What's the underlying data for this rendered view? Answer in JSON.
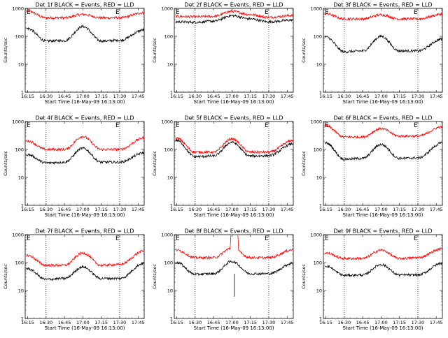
{
  "chart_data": {
    "type": "line",
    "xlabel": "Start Time (16-May-09 16:13:00)",
    "ylabel": "Counts/sec",
    "x_ticks": [
      "16:15",
      "16:30",
      "16:45",
      "17:00",
      "17:15",
      "17:30",
      "17:45"
    ],
    "x_range": [
      "16:13",
      "17:50"
    ],
    "y_scale": "log",
    "ylim": [
      1,
      1000
    ],
    "y_ticks": [
      "1",
      "10",
      "100",
      "1000"
    ],
    "vlines": [
      "16:30",
      "17:30"
    ],
    "series_colors": {
      "events": "#000000",
      "lld": "#ff0000"
    },
    "panels": [
      {
        "title": "Det 1f BLACK = Events, RED = LLD",
        "flag1": "E",
        "flag2": "E",
        "events": {
          "16:15": 190,
          "16:30": 68,
          "16:45": 70,
          "17:00": 225,
          "17:15": 68,
          "17:30": 72,
          "17:50": 170
        },
        "lld": {
          "16:15": 800,
          "16:30": 460,
          "16:45": 460,
          "17:00": 610,
          "17:15": 460,
          "17:30": 460,
          "17:50": 700
        }
      },
      {
        "title": "Det 2f BLACK = Events, RED = LLD",
        "flag1": "E",
        "flag2": "E",
        "events": {
          "16:15": 330,
          "16:30": 320,
          "16:45": 350,
          "17:00": 550,
          "17:15": 420,
          "17:30": 330,
          "17:50": 380
        },
        "lld": {
          "16:15": 520,
          "16:30": 500,
          "16:45": 520,
          "17:00": 780,
          "17:15": 600,
          "17:30": 480,
          "17:50": 560
        }
      },
      {
        "title": "Det 3f BLACK = Events, RED = LLD",
        "flag1": "E",
        "flag2": "E",
        "events": {
          "16:15": 95,
          "16:30": 28,
          "16:45": 30,
          "17:00": 100,
          "17:15": 30,
          "17:30": 30,
          "17:50": 80
        },
        "lld": {
          "16:15": 650,
          "16:30": 420,
          "16:45": 420,
          "17:00": 590,
          "17:15": 420,
          "17:30": 420,
          "17:50": 620
        }
      },
      {
        "title": "Det 4f BLACK = Events, RED = LLD",
        "flag1": "E",
        "flag2": "E",
        "events": {
          "16:15": 65,
          "16:30": 33,
          "16:45": 35,
          "17:00": 110,
          "17:15": 35,
          "17:30": 35,
          "17:50": 75
        },
        "lld": {
          "16:15": 200,
          "16:30": 100,
          "16:45": 100,
          "17:00": 290,
          "17:15": 100,
          "17:30": 100,
          "17:50": 260
        }
      },
      {
        "title": "Det 5f BLACK = Events, RED = LLD",
        "flag1": "E",
        "flag2": "E",
        "events": {
          "16:15": 210,
          "16:30": 55,
          "16:45": 58,
          "17:00": 180,
          "17:15": 58,
          "17:30": 60,
          "17:50": 160
        },
        "lld": {
          "16:15": 250,
          "16:30": 80,
          "16:45": 80,
          "17:00": 240,
          "17:15": 80,
          "17:30": 80,
          "17:50": 210
        }
      },
      {
        "title": "Det 6f BLACK = Events, RED = LLD",
        "flag1": "E",
        "flag2": "E",
        "events": {
          "16:15": 170,
          "16:30": 45,
          "16:45": 48,
          "17:00": 150,
          "17:15": 48,
          "17:30": 50,
          "17:50": 170
        },
        "lld": {
          "16:15": 700,
          "16:30": 280,
          "16:45": 280,
          "17:00": 560,
          "17:15": 300,
          "17:30": 300,
          "17:50": 650
        }
      },
      {
        "title": "Det 7f BLACK = Events, RED = LLD",
        "flag1": "E",
        "flag2": "E",
        "events": {
          "16:15": 60,
          "16:30": 25,
          "16:45": 27,
          "17:00": 70,
          "17:15": 27,
          "17:30": 27,
          "17:50": 95
        },
        "lld": {
          "16:15": 180,
          "16:30": 80,
          "16:45": 80,
          "17:00": 220,
          "17:15": 80,
          "17:30": 85,
          "17:50": 260
        }
      },
      {
        "title": "Det 8f BLACK = Events, RED = LLD",
        "flag1": "E",
        "flag2": "E",
        "events": {
          "16:15": 100,
          "16:30": 38,
          "16:45": 40,
          "17:00": 110,
          "17:15": 40,
          "17:30": 40,
          "17:50": 95
        },
        "lld": {
          "16:15": 280,
          "16:30": 150,
          "16:45": 150,
          "17:00": 330,
          "17:15": 150,
          "17:30": 150,
          "17:50": 290
        },
        "spike_time": "17:02"
      },
      {
        "title": "Det 9f BLACK = Events, RED = LLD",
        "flag1": "E",
        "flag2": "E",
        "events": {
          "16:15": 75,
          "16:30": 35,
          "16:45": 36,
          "17:00": 85,
          "17:15": 36,
          "17:30": 36,
          "17:50": 95
        },
        "lld": {
          "16:15": 220,
          "16:30": 140,
          "16:45": 140,
          "17:00": 280,
          "17:15": 140,
          "17:30": 150,
          "17:50": 310
        }
      }
    ]
  }
}
